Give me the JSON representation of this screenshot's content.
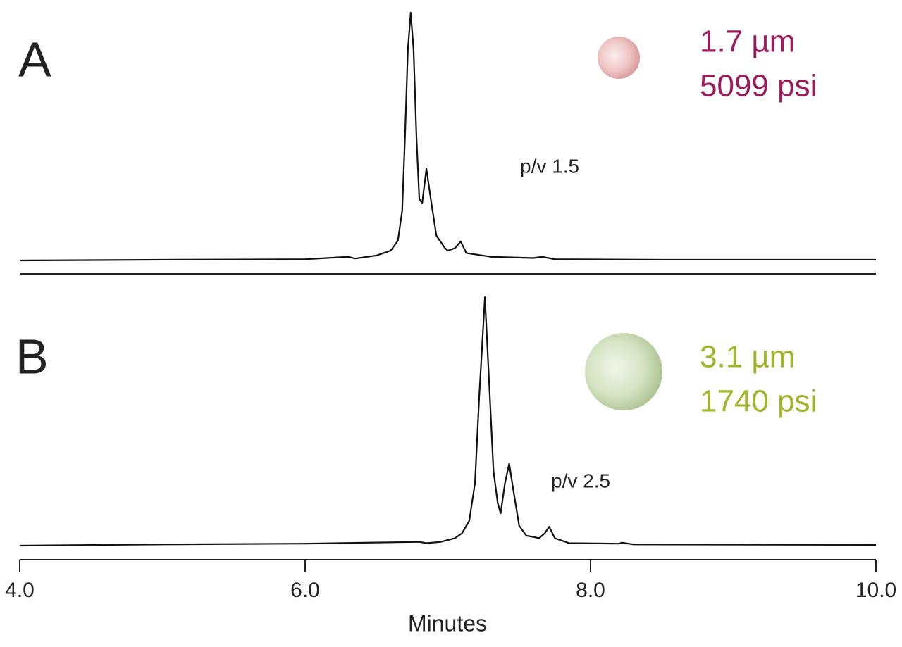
{
  "chart_data": [
    {
      "type": "line",
      "label": "A",
      "particle_size": "1.7 µm",
      "pressure": "5099 psi",
      "annotation": "p/v 1.5",
      "text_color": "#9b1b5c",
      "color": "#111111",
      "xlim": [
        4,
        10
      ],
      "ylim": [
        0,
        100
      ],
      "x": [
        4.0,
        5.0,
        6.0,
        6.3,
        6.35,
        6.5,
        6.6,
        6.65,
        6.68,
        6.7,
        6.72,
        6.74,
        6.76,
        6.78,
        6.8,
        6.82,
        6.85,
        6.88,
        6.92,
        6.98,
        7.0,
        7.05,
        7.09,
        7.13,
        7.3,
        7.6,
        7.66,
        7.75,
        8.5,
        10.0
      ],
      "values": [
        0,
        0.3,
        0.5,
        1.5,
        0.8,
        2,
        4,
        8,
        20,
        50,
        85,
        100,
        85,
        50,
        25,
        23,
        37,
        25,
        10,
        5,
        4,
        5,
        7.7,
        3,
        1.5,
        1,
        1.5,
        0.5,
        0.3,
        0.3
      ]
    },
    {
      "type": "line",
      "label": "B",
      "particle_size": "3.1 µm",
      "pressure": "1740 psi",
      "annotation": "p/v 2.5",
      "text_color": "#a2b32c",
      "color": "#111111",
      "xlim": [
        4,
        10
      ],
      "ylim": [
        0,
        100
      ],
      "x_label": "Minutes",
      "xticks": [
        {
          "value": 4,
          "label": "4.0"
        },
        {
          "value": 6,
          "label": "6.0"
        },
        {
          "value": 8,
          "label": "8.0"
        },
        {
          "value": 10,
          "label": "10.0"
        }
      ],
      "x": [
        4.0,
        5.0,
        6.0,
        6.8,
        6.85,
        6.95,
        7.05,
        7.1,
        7.15,
        7.19,
        7.22,
        7.26,
        7.29,
        7.32,
        7.35,
        7.37,
        7.4,
        7.43,
        7.46,
        7.5,
        7.55,
        7.6,
        7.64,
        7.68,
        7.71,
        7.75,
        7.85,
        8.2,
        8.22,
        8.3,
        10.0
      ],
      "values": [
        0,
        0.5,
        0.8,
        1.5,
        1,
        1.5,
        3,
        5,
        10,
        25,
        60,
        100,
        65,
        30,
        17,
        13,
        25,
        33,
        22,
        8,
        4,
        3.5,
        3,
        5,
        7.6,
        3,
        1,
        0.8,
        1.2,
        0.5,
        0.3
      ]
    }
  ]
}
